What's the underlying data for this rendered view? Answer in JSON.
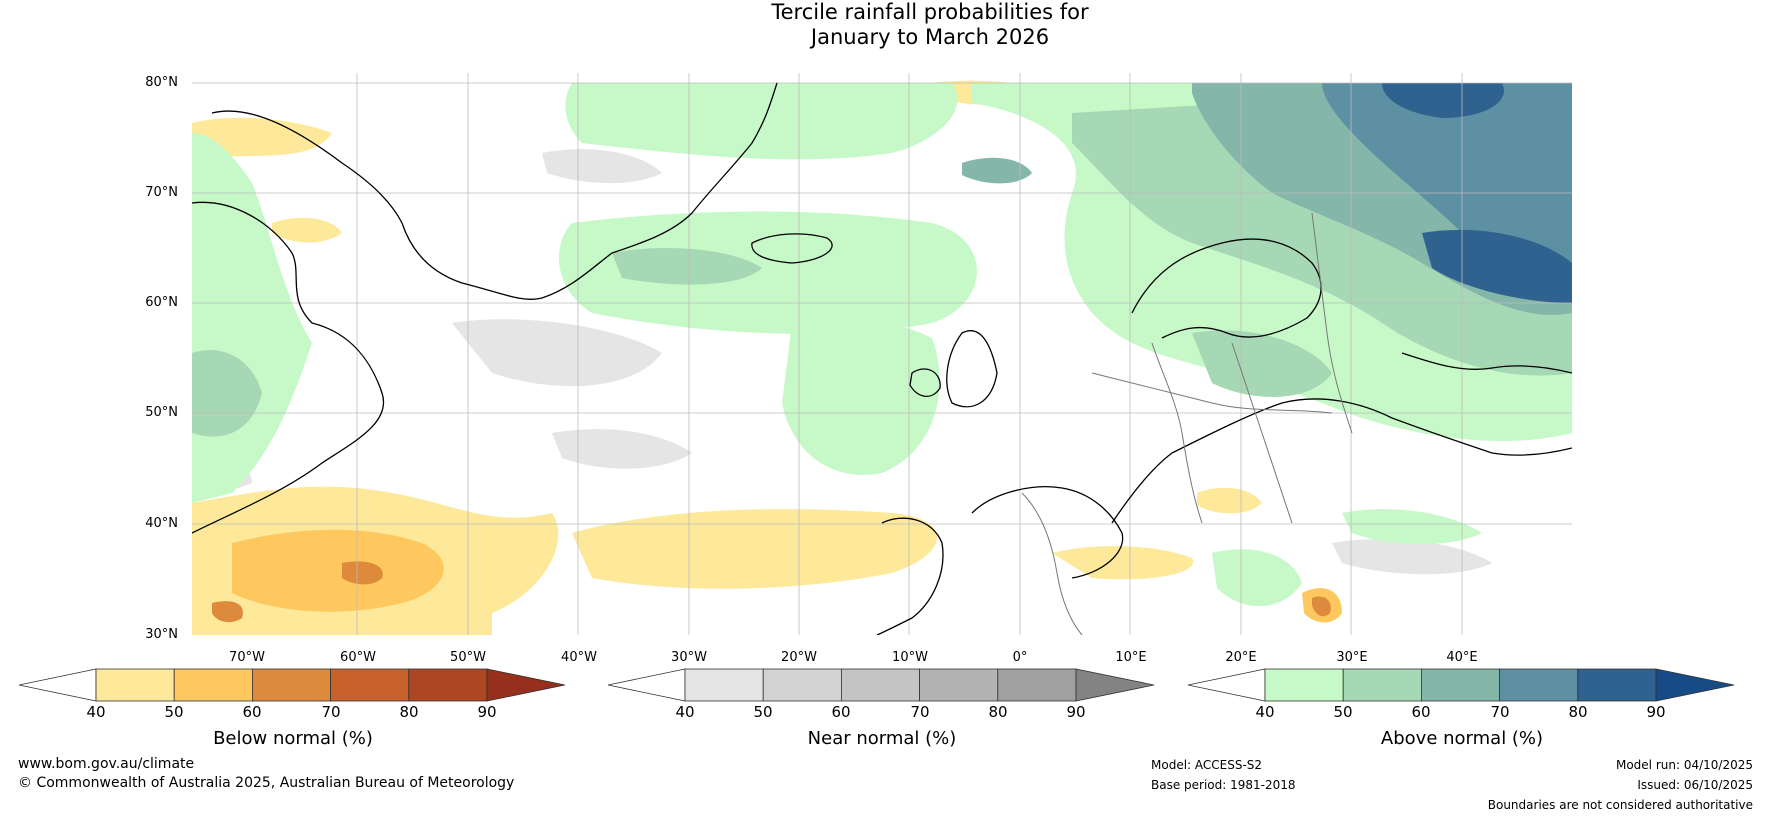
{
  "title": {
    "line1": "Tercile rainfall probabilities for",
    "line2": "January to March 2026"
  },
  "map": {
    "lat_labels": [
      "80°N",
      "70°N",
      "60°N",
      "50°N",
      "40°N",
      "30°N"
    ],
    "lon_labels": [
      "70°W",
      "60°W",
      "50°W",
      "40°W",
      "30°W",
      "20°W",
      "10°W",
      "0°",
      "10°E",
      "20°E",
      "30°E",
      "40°E"
    ]
  },
  "colorbars": [
    {
      "label": "Below normal (%)",
      "ticks": [
        "40",
        "50",
        "60",
        "70",
        "80",
        "90"
      ],
      "colors": [
        "#ffffff",
        "#fee99a",
        "#fec85e",
        "#dd8a3c",
        "#c8612b",
        "#ae4623",
        "#962f1c"
      ]
    },
    {
      "label": "Near normal (%)",
      "ticks": [
        "40",
        "50",
        "60",
        "70",
        "80",
        "90"
      ],
      "colors": [
        "#ffffff",
        "#e5e5e5",
        "#d3d3d3",
        "#c4c4c4",
        "#b3b3b3",
        "#a0a0a0",
        "#838383"
      ]
    },
    {
      "label": "Above normal (%)",
      "ticks": [
        "40",
        "50",
        "60",
        "70",
        "80",
        "90"
      ],
      "colors": [
        "#ffffff",
        "#c7f9c8",
        "#a6d8b5",
        "#84b6aa",
        "#5d90a2",
        "#30628f",
        "#174b85"
      ]
    }
  ],
  "footer": {
    "url": "www.bom.gov.au/climate",
    "copyright": "© Commonwealth of Australia 2025, Australian Bureau of Meteorology",
    "model": "Model: ACCESS-S2",
    "base_period": "Base period: 1981-2018",
    "model_run": "Model run: 04/10/2025",
    "issued": "Issued: 06/10/2025",
    "disclaimer": "Boundaries are not considered authoritative"
  }
}
